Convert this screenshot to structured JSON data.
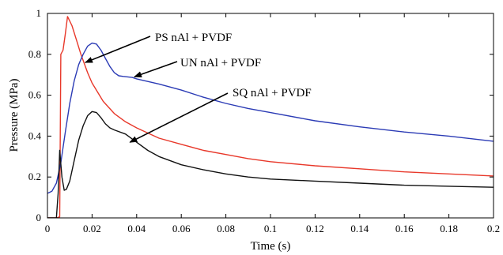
{
  "chart_data": {
    "type": "line",
    "xlabel": "Time (s)",
    "ylabel": "Pressure (MPa)",
    "xlim": [
      0,
      0.2
    ],
    "ylim": [
      0,
      1
    ],
    "grid": false,
    "legend": "none",
    "xticks": [
      "0",
      "0.02",
      "0.04",
      "0.06",
      "0.08",
      "0.1",
      "0.12",
      "0.14",
      "0.16",
      "0.18",
      "0.2"
    ],
    "yticks": [
      "0",
      "0.2",
      "0.4",
      "0.6",
      "0.8",
      "1"
    ],
    "series": [
      {
        "name": "PS nAl + PVDF",
        "color": "#e8382a",
        "x": [
          0,
          0.004,
          0.0055,
          0.006,
          0.007,
          0.008,
          0.009,
          0.011,
          0.013,
          0.015,
          0.018,
          0.02,
          0.025,
          0.03,
          0.035,
          0.04,
          0.05,
          0.06,
          0.07,
          0.08,
          0.09,
          0.1,
          0.12,
          0.14,
          0.16,
          0.18,
          0.2
        ],
        "values": [
          0,
          0,
          0.005,
          0.8,
          0.82,
          0.9,
          0.985,
          0.94,
          0.87,
          0.8,
          0.71,
          0.66,
          0.57,
          0.51,
          0.47,
          0.44,
          0.39,
          0.36,
          0.33,
          0.31,
          0.29,
          0.275,
          0.255,
          0.24,
          0.225,
          0.215,
          0.205
        ]
      },
      {
        "name": "UN nAl + PVDF",
        "color": "#2b3bb5",
        "x": [
          0,
          0.002,
          0.004,
          0.006,
          0.008,
          0.01,
          0.012,
          0.014,
          0.016,
          0.018,
          0.02,
          0.022,
          0.024,
          0.026,
          0.028,
          0.03,
          0.032,
          0.034,
          0.038,
          0.04,
          0.05,
          0.06,
          0.07,
          0.08,
          0.09,
          0.1,
          0.12,
          0.14,
          0.16,
          0.18,
          0.2
        ],
        "values": [
          0.12,
          0.13,
          0.17,
          0.27,
          0.42,
          0.56,
          0.67,
          0.75,
          0.8,
          0.84,
          0.855,
          0.85,
          0.82,
          0.78,
          0.74,
          0.71,
          0.695,
          0.692,
          0.687,
          0.68,
          0.655,
          0.625,
          0.59,
          0.56,
          0.535,
          0.515,
          0.475,
          0.445,
          0.42,
          0.4,
          0.375
        ]
      },
      {
        "name": "SQ nAl + PVDF",
        "color": "#111111",
        "x": [
          0,
          0.004,
          0.0048,
          0.0055,
          0.0065,
          0.0075,
          0.0085,
          0.01,
          0.012,
          0.014,
          0.016,
          0.018,
          0.02,
          0.022,
          0.024,
          0.026,
          0.028,
          0.03,
          0.035,
          0.04,
          0.045,
          0.05,
          0.06,
          0.07,
          0.08,
          0.09,
          0.1,
          0.12,
          0.14,
          0.16,
          0.18,
          0.2
        ],
        "values": [
          0,
          0,
          0.12,
          0.33,
          0.2,
          0.135,
          0.14,
          0.18,
          0.28,
          0.38,
          0.45,
          0.5,
          0.52,
          0.515,
          0.49,
          0.46,
          0.44,
          0.43,
          0.41,
          0.37,
          0.33,
          0.3,
          0.26,
          0.235,
          0.215,
          0.2,
          0.19,
          0.18,
          0.17,
          0.16,
          0.155,
          0.15
        ]
      }
    ],
    "annotations": [
      {
        "text": "PS nAl + PVDF",
        "target": [
          0.017,
          0.76
        ]
      },
      {
        "text": "UN nAl + PVDF",
        "target": [
          0.039,
          0.69
        ]
      },
      {
        "text": "SQ nAl + PVDF",
        "target": [
          0.037,
          0.37
        ]
      }
    ]
  }
}
